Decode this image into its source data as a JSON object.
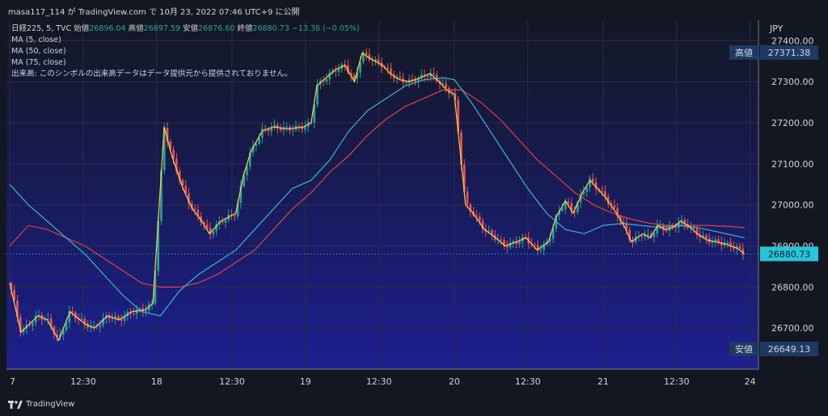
{
  "header": {
    "text": "masa117_114 が TradingView.com で 10月 23, 2022 07:46 UTC+9 に公開"
  },
  "legend": {
    "symbol": "日経225, 5, TVC",
    "open_label": "始値",
    "open": "26896.04",
    "high_label": "高値",
    "high": "26897.59",
    "low_label": "安値",
    "low": "26876.60",
    "close_label": "終値",
    "close": "26880.73",
    "change": "−13.36 (−0.05%)",
    "ma1": "MA (5, close)",
    "ma2": "MA (50, close)",
    "ma3": "MA (75, close)",
    "volume_note": "出来高: このシンボルの出来高データはデータ提供元から提供されておりません。"
  },
  "footer": {
    "brand": "TradingView"
  },
  "colors": {
    "background_top": "#131722",
    "background_bottom": "#1c1f8f",
    "up": "#26a69a",
    "down": "#ef5350",
    "ma5": "#f9d34b",
    "ma50": "#3fb6c9",
    "ma75": "#e0433f",
    "last_price": "#26c6da"
  },
  "chart_data": {
    "type": "candlestick",
    "currency": "JPY",
    "ylim": [
      26600,
      27450
    ],
    "y_ticks": [
      26700,
      26800,
      26900,
      27000,
      27100,
      27200,
      27300,
      27400
    ],
    "y_tick_labels": [
      "26700.00",
      "26800.00",
      "26900.00",
      "27000.00",
      "27100.00",
      "27200.00",
      "27300.00",
      "27400.00"
    ],
    "x_tick_labels": [
      "7",
      "12:30",
      "18",
      "12:30",
      "19",
      "12:30",
      "20",
      "12:30",
      "21",
      "12:30",
      "24"
    ],
    "markers": [
      {
        "label": "高値",
        "value": "27371.38",
        "y": 27371.38
      },
      {
        "label": "",
        "value": "26880.73",
        "y": 26880.73
      },
      {
        "label": "安値",
        "value": "26649.13",
        "y": 26649.13
      }
    ],
    "price_series": [
      [
        0,
        26810
      ],
      [
        0.6,
        26690
      ],
      [
        1.5,
        26730
      ],
      [
        2.0,
        26720
      ],
      [
        2.6,
        26670
      ],
      [
        3.2,
        26740
      ],
      [
        4.0,
        26710
      ],
      [
        4.5,
        26700
      ],
      [
        5.2,
        26730
      ],
      [
        5.8,
        26720
      ],
      [
        6.5,
        26740
      ],
      [
        7.2,
        26745
      ],
      [
        7.6,
        26760
      ],
      [
        8.2,
        27190
      ],
      [
        8.6,
        27120
      ],
      [
        9.2,
        27040
      ],
      [
        9.7,
        26990
      ],
      [
        10.2,
        26960
      ],
      [
        10.6,
        26930
      ],
      [
        11.2,
        26960
      ],
      [
        11.6,
        26970
      ],
      [
        12.0,
        26980
      ],
      [
        12.4,
        27070
      ],
      [
        12.8,
        27130
      ],
      [
        13.4,
        27180
      ],
      [
        14.0,
        27190
      ],
      [
        14.8,
        27185
      ],
      [
        15.6,
        27190
      ],
      [
        16.0,
        27200
      ],
      [
        16.3,
        27290
      ],
      [
        16.8,
        27310
      ],
      [
        17.3,
        27330
      ],
      [
        17.8,
        27340
      ],
      [
        18.3,
        27300
      ],
      [
        18.7,
        27370
      ],
      [
        19.2,
        27355
      ],
      [
        19.8,
        27340
      ],
      [
        20.2,
        27320
      ],
      [
        20.7,
        27305
      ],
      [
        21.2,
        27300
      ],
      [
        21.8,
        27310
      ],
      [
        22.3,
        27320
      ],
      [
        22.8,
        27300
      ],
      [
        23.2,
        27280
      ],
      [
        23.6,
        27270
      ],
      [
        24.2,
        27000
      ],
      [
        24.6,
        26980
      ],
      [
        25.2,
        26940
      ],
      [
        25.8,
        26920
      ],
      [
        26.3,
        26900
      ],
      [
        26.9,
        26910
      ],
      [
        27.4,
        26920
      ],
      [
        28.0,
        26890
      ],
      [
        28.6,
        26910
      ],
      [
        29.0,
        26970
      ],
      [
        29.5,
        27010
      ],
      [
        29.9,
        26980
      ],
      [
        30.4,
        27030
      ],
      [
        30.8,
        27060
      ],
      [
        31.2,
        27040
      ],
      [
        31.6,
        27020
      ],
      [
        32.2,
        26980
      ],
      [
        32.6,
        26950
      ],
      [
        33.0,
        26910
      ],
      [
        33.6,
        26930
      ],
      [
        34.0,
        26920
      ],
      [
        34.4,
        26950
      ],
      [
        34.8,
        26940
      ],
      [
        35.2,
        26945
      ],
      [
        35.6,
        26960
      ],
      [
        36.0,
        26950
      ],
      [
        36.5,
        26930
      ],
      [
        37.0,
        26915
      ],
      [
        37.5,
        26910
      ],
      [
        38.0,
        26905
      ],
      [
        38.6,
        26895
      ],
      [
        39.0,
        26881
      ]
    ],
    "ma50_series": [
      [
        0,
        27050
      ],
      [
        1.0,
        27000
      ],
      [
        2.0,
        26960
      ],
      [
        3.0,
        26920
      ],
      [
        4.0,
        26880
      ],
      [
        5.0,
        26830
      ],
      [
        6.0,
        26780
      ],
      [
        7.0,
        26740
      ],
      [
        8.0,
        26730
      ],
      [
        9.0,
        26790
      ],
      [
        10.0,
        26830
      ],
      [
        11.0,
        26860
      ],
      [
        12.0,
        26890
      ],
      [
        13.0,
        26940
      ],
      [
        14.0,
        26990
      ],
      [
        15.0,
        27040
      ],
      [
        16.0,
        27060
      ],
      [
        17.0,
        27110
      ],
      [
        18.0,
        27180
      ],
      [
        19.0,
        27230
      ],
      [
        20.0,
        27260
      ],
      [
        21.0,
        27290
      ],
      [
        22.0,
        27305
      ],
      [
        23.0,
        27310
      ],
      [
        23.6,
        27305
      ],
      [
        24.5,
        27250
      ],
      [
        25.5,
        27180
      ],
      [
        26.5,
        27110
      ],
      [
        27.5,
        27040
      ],
      [
        28.5,
        26980
      ],
      [
        29.5,
        26940
      ],
      [
        30.5,
        26930
      ],
      [
        31.5,
        26950
      ],
      [
        32.5,
        26955
      ],
      [
        33.5,
        26950
      ],
      [
        34.5,
        26945
      ],
      [
        35.5,
        26950
      ],
      [
        36.5,
        26945
      ],
      [
        37.5,
        26935
      ],
      [
        38.5,
        26925
      ],
      [
        39.0,
        26920
      ]
    ],
    "ma75_series": [
      [
        0,
        26900
      ],
      [
        1.0,
        26950
      ],
      [
        2.0,
        26940
      ],
      [
        3.0,
        26920
      ],
      [
        4.0,
        26900
      ],
      [
        5.0,
        26870
      ],
      [
        6.0,
        26840
      ],
      [
        7.0,
        26810
      ],
      [
        8.0,
        26800
      ],
      [
        9.0,
        26800
      ],
      [
        10.0,
        26810
      ],
      [
        11.0,
        26830
      ],
      [
        12.0,
        26860
      ],
      [
        13.0,
        26890
      ],
      [
        14.0,
        26940
      ],
      [
        15.0,
        26990
      ],
      [
        16.0,
        27030
      ],
      [
        17.0,
        27080
      ],
      [
        18.0,
        27120
      ],
      [
        19.0,
        27170
      ],
      [
        20.0,
        27210
      ],
      [
        21.0,
        27240
      ],
      [
        22.0,
        27260
      ],
      [
        23.0,
        27280
      ],
      [
        24.0,
        27280
      ],
      [
        25.0,
        27250
      ],
      [
        26.0,
        27210
      ],
      [
        27.0,
        27160
      ],
      [
        28.0,
        27110
      ],
      [
        29.0,
        27070
      ],
      [
        30.0,
        27030
      ],
      [
        31.0,
        27000
      ],
      [
        32.0,
        26980
      ],
      [
        33.0,
        26965
      ],
      [
        34.0,
        26955
      ],
      [
        35.0,
        26950
      ],
      [
        36.0,
        26950
      ],
      [
        37.0,
        26950
      ],
      [
        38.0,
        26948
      ],
      [
        39.0,
        26945
      ]
    ],
    "x_range": [
      0,
      39.4
    ],
    "x_tick_positions": [
      0,
      3.9,
      7.8,
      11.8,
      15.7,
      19.6,
      23.6,
      27.5,
      31.5,
      35.4,
      39.3
    ]
  }
}
